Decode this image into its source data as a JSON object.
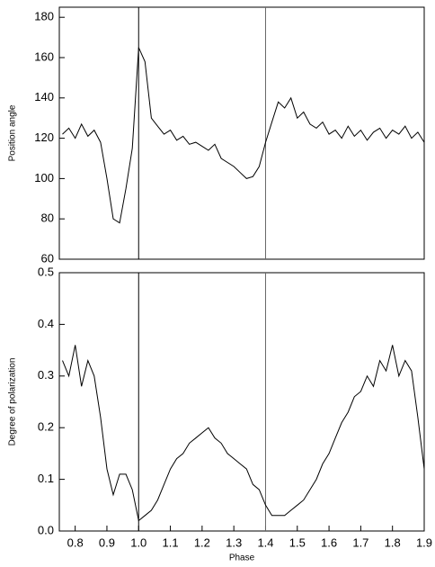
{
  "chart_data": [
    {
      "type": "line",
      "ylabel": "Position angle",
      "color": "#000000",
      "x": [
        0.76,
        0.78,
        0.8,
        0.82,
        0.84,
        0.86,
        0.88,
        0.9,
        0.92,
        0.94,
        0.96,
        0.98,
        1.0,
        1.02,
        1.04,
        1.06,
        1.08,
        1.1,
        1.12,
        1.14,
        1.16,
        1.18,
        1.2,
        1.22,
        1.24,
        1.26,
        1.28,
        1.3,
        1.32,
        1.34,
        1.36,
        1.38,
        1.4,
        1.42,
        1.44,
        1.46,
        1.48,
        1.5,
        1.52,
        1.54,
        1.56,
        1.58,
        1.6,
        1.62,
        1.64,
        1.66,
        1.68,
        1.7,
        1.72,
        1.74,
        1.76,
        1.78,
        1.8,
        1.82,
        1.84,
        1.86,
        1.88,
        1.9
      ],
      "values": [
        122,
        125,
        120,
        127,
        121,
        124,
        118,
        100,
        80,
        78,
        95,
        115,
        165,
        158,
        130,
        126,
        122,
        124,
        119,
        121,
        117,
        118,
        116,
        114,
        117,
        110,
        108,
        106,
        103,
        100,
        101,
        106,
        118,
        128,
        138,
        135,
        140,
        130,
        133,
        127,
        125,
        128,
        122,
        124,
        120,
        126,
        121,
        124,
        119,
        123,
        125,
        120,
        124,
        122,
        126,
        120,
        123,
        118
      ],
      "xlim": [
        0.75,
        1.9
      ],
      "ylim": [
        60,
        185
      ],
      "yticks": [
        60,
        80,
        100,
        120,
        140,
        160,
        180
      ],
      "vlines": [
        1,
        1.4
      ]
    },
    {
      "type": "line",
      "ylabel": "Degree of polarization",
      "xlabel": "Phase",
      "color": "#000000",
      "x": [
        0.76,
        0.78,
        0.8,
        0.82,
        0.84,
        0.86,
        0.88,
        0.9,
        0.92,
        0.94,
        0.96,
        0.98,
        1.0,
        1.02,
        1.04,
        1.06,
        1.08,
        1.1,
        1.12,
        1.14,
        1.16,
        1.18,
        1.2,
        1.22,
        1.24,
        1.26,
        1.28,
        1.3,
        1.32,
        1.34,
        1.36,
        1.38,
        1.4,
        1.42,
        1.44,
        1.46,
        1.48,
        1.5,
        1.52,
        1.54,
        1.56,
        1.58,
        1.6,
        1.62,
        1.64,
        1.66,
        1.68,
        1.7,
        1.72,
        1.74,
        1.76,
        1.78,
        1.8,
        1.82,
        1.84,
        1.86,
        1.88,
        1.9
      ],
      "values": [
        0.33,
        0.3,
        0.36,
        0.28,
        0.33,
        0.3,
        0.22,
        0.12,
        0.07,
        0.11,
        0.11,
        0.08,
        0.02,
        0.03,
        0.04,
        0.06,
        0.09,
        0.12,
        0.14,
        0.15,
        0.17,
        0.18,
        0.19,
        0.2,
        0.18,
        0.17,
        0.15,
        0.14,
        0.13,
        0.12,
        0.09,
        0.08,
        0.05,
        0.03,
        0.03,
        0.03,
        0.04,
        0.05,
        0.06,
        0.08,
        0.1,
        0.13,
        0.15,
        0.18,
        0.21,
        0.23,
        0.26,
        0.27,
        0.3,
        0.28,
        0.33,
        0.31,
        0.36,
        0.3,
        0.33,
        0.31,
        0.22,
        0.12
      ],
      "xlim": [
        0.75,
        1.9
      ],
      "ylim": [
        0,
        0.5
      ],
      "yticks": [
        {
          "value": 0,
          "label": "0.0"
        },
        0.1,
        0.2,
        0.3,
        0.4,
        {
          "value": 0.5,
          "label": "0.5"
        }
      ],
      "xticks": [
        0.8,
        0.9,
        {
          "value": 1,
          "label": "1.0"
        },
        1.1,
        1.2,
        1.3,
        1.4,
        1.5,
        1.6,
        1.7,
        1.8,
        1.9
      ],
      "vlines": [
        1,
        1.4
      ]
    }
  ]
}
